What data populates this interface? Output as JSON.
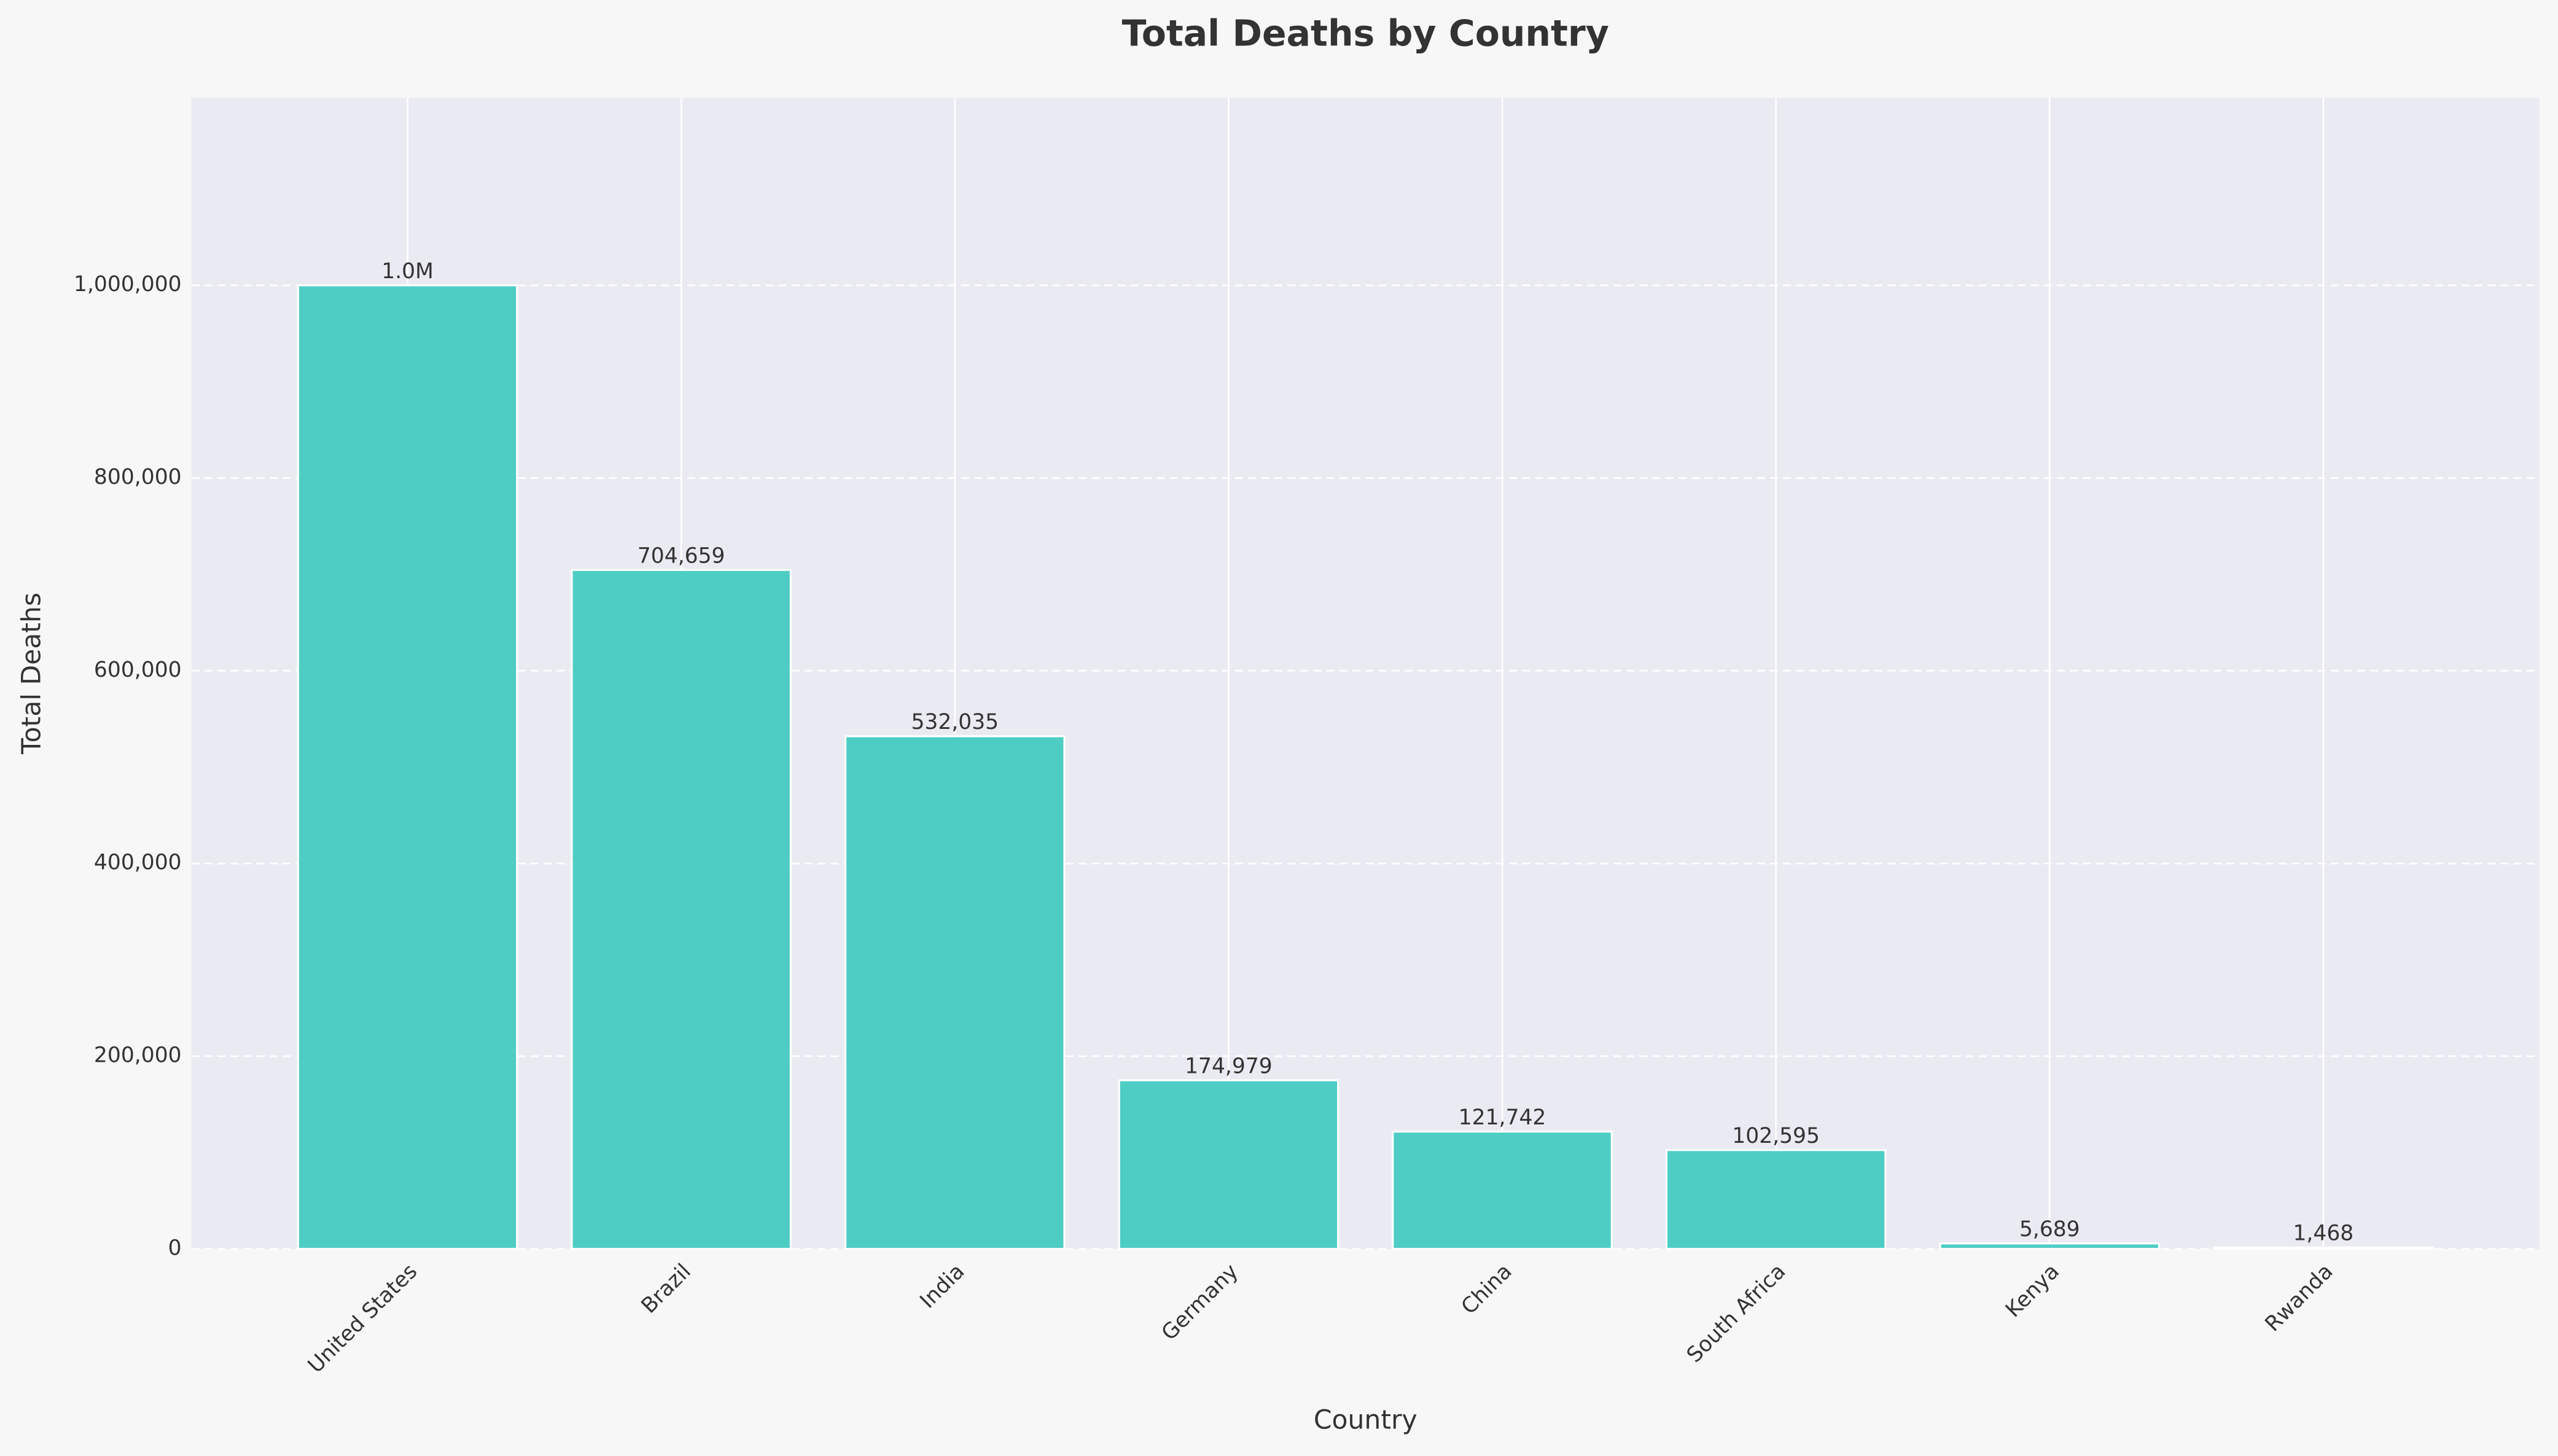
{
  "chart_data": {
    "type": "bar",
    "title": "Total Deaths by Country",
    "xlabel": "Country",
    "ylabel": "Total Deaths",
    "categories": [
      "United States",
      "Brazil",
      "India",
      "Germany",
      "China",
      "South Africa",
      "Kenya",
      "Rwanda"
    ],
    "values": [
      1000000,
      704659,
      532035,
      174979,
      121742,
      102595,
      5689,
      1468
    ],
    "value_labels": [
      "1.0M",
      "704,659",
      "532,035",
      "174,979",
      "121,742",
      "102,595",
      "5,689",
      "1,468"
    ],
    "color": "#4ecdc4",
    "ylim": [
      0,
      1194600
    ],
    "yticks": [
      0,
      {
        "value": 200000,
        "label": "200,000"
      },
      {
        "value": 400000,
        "label": "400,000"
      },
      {
        "value": 600000,
        "label": "600,000"
      },
      {
        "value": 800000,
        "label": "800,000"
      },
      {
        "value": 1000000,
        "label": "1,000,000"
      }
    ],
    "grid": true
  }
}
